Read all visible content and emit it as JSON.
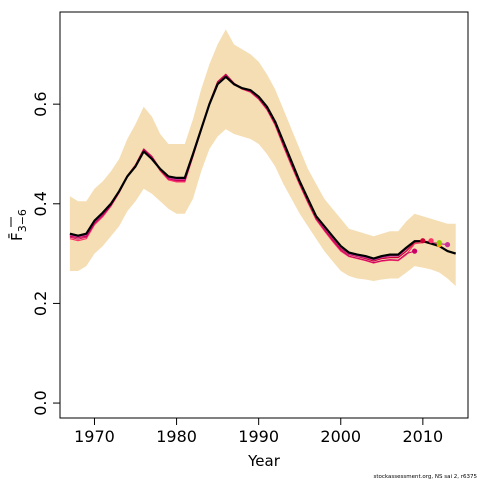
{
  "chart_data": {
    "type": "line",
    "xlabel": "Year",
    "ylabel": "F̄",
    "ylabel_sub": "3−6",
    "xlim": [
      1965.8,
      2015.5
    ],
    "ylim": [
      -0.03,
      0.785
    ],
    "x_ticks": [
      1970,
      1980,
      1990,
      2000,
      2010
    ],
    "y_ticks": [
      0.0,
      0.2,
      0.4,
      0.6
    ],
    "y_tick_labels": [
      "0.0",
      "0.2",
      "0.4",
      "0.6"
    ],
    "credit": "stockassessment.org, NS sai 2, r6375",
    "band_color": "#f5deb3",
    "years": [
      1967,
      1968,
      1969,
      1970,
      1971,
      1972,
      1973,
      1974,
      1975,
      1976,
      1977,
      1978,
      1979,
      1980,
      1981,
      1982,
      1983,
      1984,
      1985,
      1986,
      1987,
      1988,
      1989,
      1990,
      1991,
      1992,
      1993,
      1994,
      1995,
      1996,
      1997,
      1998,
      1999,
      2000,
      2001,
      2002,
      2003,
      2004,
      2005,
      2006,
      2007,
      2008,
      2009,
      2010,
      2011,
      2012,
      2013,
      2014
    ],
    "band_upper": [
      0.415,
      0.405,
      0.405,
      0.43,
      0.445,
      0.465,
      0.49,
      0.53,
      0.56,
      0.595,
      0.575,
      0.54,
      0.52,
      0.52,
      0.52,
      0.57,
      0.63,
      0.68,
      0.72,
      0.75,
      0.72,
      0.71,
      0.7,
      0.685,
      0.66,
      0.63,
      0.59,
      0.55,
      0.51,
      0.47,
      0.44,
      0.41,
      0.39,
      0.37,
      0.35,
      0.345,
      0.34,
      0.335,
      0.34,
      0.345,
      0.345,
      0.365,
      0.38,
      0.375,
      0.37,
      0.365,
      0.36,
      0.36
    ],
    "band_lower": [
      0.265,
      0.265,
      0.275,
      0.3,
      0.315,
      0.335,
      0.355,
      0.385,
      0.405,
      0.43,
      0.42,
      0.405,
      0.39,
      0.38,
      0.38,
      0.41,
      0.465,
      0.51,
      0.535,
      0.55,
      0.54,
      0.535,
      0.53,
      0.52,
      0.5,
      0.475,
      0.44,
      0.41,
      0.38,
      0.355,
      0.33,
      0.305,
      0.285,
      0.265,
      0.255,
      0.25,
      0.248,
      0.245,
      0.248,
      0.25,
      0.25,
      0.262,
      0.275,
      0.272,
      0.268,
      0.262,
      0.25,
      0.235
    ],
    "series": [
      {
        "color": "#000000",
        "width": 2.2,
        "values": [
          0.34,
          0.336,
          0.34,
          0.366,
          0.382,
          0.4,
          0.425,
          0.455,
          0.475,
          0.505,
          0.49,
          0.47,
          0.455,
          0.452,
          0.452,
          0.5,
          0.55,
          0.6,
          0.64,
          0.655,
          0.64,
          0.632,
          0.628,
          0.615,
          0.595,
          0.565,
          0.525,
          0.485,
          0.445,
          0.41,
          0.375,
          0.355,
          0.335,
          0.315,
          0.302,
          0.298,
          0.295,
          0.29,
          0.295,
          0.298,
          0.298,
          0.312,
          0.325,
          0.325,
          0.32,
          0.315,
          0.305,
          0.3
        ]
      },
      {
        "color": "#cc0033",
        "width": 1.2,
        "values": [
          0.335,
          0.332,
          0.335,
          0.362,
          0.378,
          0.398,
          0.424,
          0.456,
          0.478,
          0.51,
          0.495,
          0.47,
          0.452,
          0.448,
          0.448,
          0.498,
          0.55,
          0.602,
          0.645,
          0.66,
          0.642,
          0.632,
          0.626,
          0.612,
          0.592,
          0.562,
          0.52,
          0.48,
          0.442,
          0.406,
          0.372,
          0.35,
          0.33,
          0.31,
          0.298,
          0.294,
          0.29,
          0.285,
          0.29,
          0.292,
          0.292,
          0.305,
          0.322,
          0.326
        ],
        "end_point": {
          "x": 2010,
          "y": 0.326
        }
      },
      {
        "color": "#ff3366",
        "width": 1.2,
        "values": [
          0.33,
          0.326,
          0.33,
          0.358,
          0.374,
          0.395,
          0.422,
          0.454,
          0.476,
          0.508,
          0.493,
          0.466,
          0.448,
          0.444,
          0.444,
          0.495,
          0.548,
          0.6,
          0.643,
          0.658,
          0.64,
          0.63,
          0.624,
          0.61,
          0.589,
          0.558,
          0.516,
          0.476,
          0.438,
          0.402,
          0.368,
          0.346,
          0.325,
          0.305,
          0.294,
          0.29,
          0.286,
          0.281,
          0.285,
          0.287,
          0.286,
          0.298,
          0.32,
          0.322,
          0.326
        ],
        "end_point": {
          "x": 2011,
          "y": 0.326
        }
      },
      {
        "color": "#ff9900",
        "width": 1.2,
        "values": [
          0.338,
          0.334,
          0.338,
          0.364,
          0.38,
          0.4,
          0.425,
          0.455,
          0.477,
          0.507,
          0.492,
          0.468,
          0.452,
          0.45,
          0.45,
          0.5,
          0.55,
          0.601,
          0.642,
          0.657,
          0.641,
          0.631,
          0.627,
          0.614,
          0.594,
          0.564,
          0.523,
          0.483,
          0.444,
          0.408,
          0.374,
          0.353,
          0.333,
          0.313,
          0.3,
          0.296,
          0.293,
          0.288,
          0.293,
          0.296,
          0.296,
          0.31,
          0.324,
          0.325,
          0.322,
          0.318
        ],
        "end_point": {
          "x": 2012,
          "y": 0.318
        }
      },
      {
        "color": "#99cc00",
        "width": 1.2,
        "values": [
          0.339,
          0.335,
          0.339,
          0.365,
          0.381,
          0.4,
          0.425,
          0.455,
          0.476,
          0.506,
          0.491,
          0.469,
          0.453,
          0.451,
          0.451,
          0.5,
          0.55,
          0.6,
          0.641,
          0.656,
          0.64,
          0.631,
          0.627,
          0.614,
          0.594,
          0.564,
          0.524,
          0.484,
          0.444,
          0.409,
          0.374,
          0.354,
          0.334,
          0.314,
          0.301,
          0.297,
          0.294,
          0.289,
          0.294,
          0.297,
          0.297,
          0.311,
          0.324,
          0.325,
          0.321,
          0.322
        ],
        "end_point": {
          "x": 2012,
          "y": 0.322
        }
      },
      {
        "color": "#cc3399",
        "width": 1.2,
        "values": [
          0.337,
          0.333,
          0.337,
          0.363,
          0.379,
          0.399,
          0.424,
          0.455,
          0.477,
          0.508,
          0.493,
          0.469,
          0.452,
          0.449,
          0.449,
          0.499,
          0.55,
          0.601,
          0.643,
          0.658,
          0.641,
          0.631,
          0.627,
          0.613,
          0.593,
          0.563,
          0.522,
          0.482,
          0.443,
          0.407,
          0.373,
          0.352,
          0.332,
          0.312,
          0.299,
          0.295,
          0.292,
          0.287,
          0.292,
          0.295,
          0.295,
          0.309,
          0.326,
          0.326,
          0.322,
          0.32,
          0.318
        ],
        "end_point": {
          "x": 2013,
          "y": 0.318
        }
      },
      {
        "color": "#cc0066",
        "width": 1.0,
        "values": [
          0.333,
          0.329,
          0.333,
          0.36,
          0.376,
          0.396,
          0.423,
          0.455,
          0.477,
          0.509,
          0.494,
          0.468,
          0.45,
          0.446,
          0.446,
          0.496,
          0.549,
          0.601,
          0.644,
          0.659,
          0.641,
          0.631,
          0.625,
          0.611,
          0.59,
          0.56,
          0.518,
          0.478,
          0.44,
          0.404,
          0.37,
          0.348,
          0.327,
          0.307,
          0.295,
          0.291,
          0.287,
          0.282,
          0.286,
          0.288,
          0.287,
          0.3,
          0.305
        ],
        "end_point": {
          "x": 2009,
          "y": 0.305
        }
      }
    ]
  }
}
